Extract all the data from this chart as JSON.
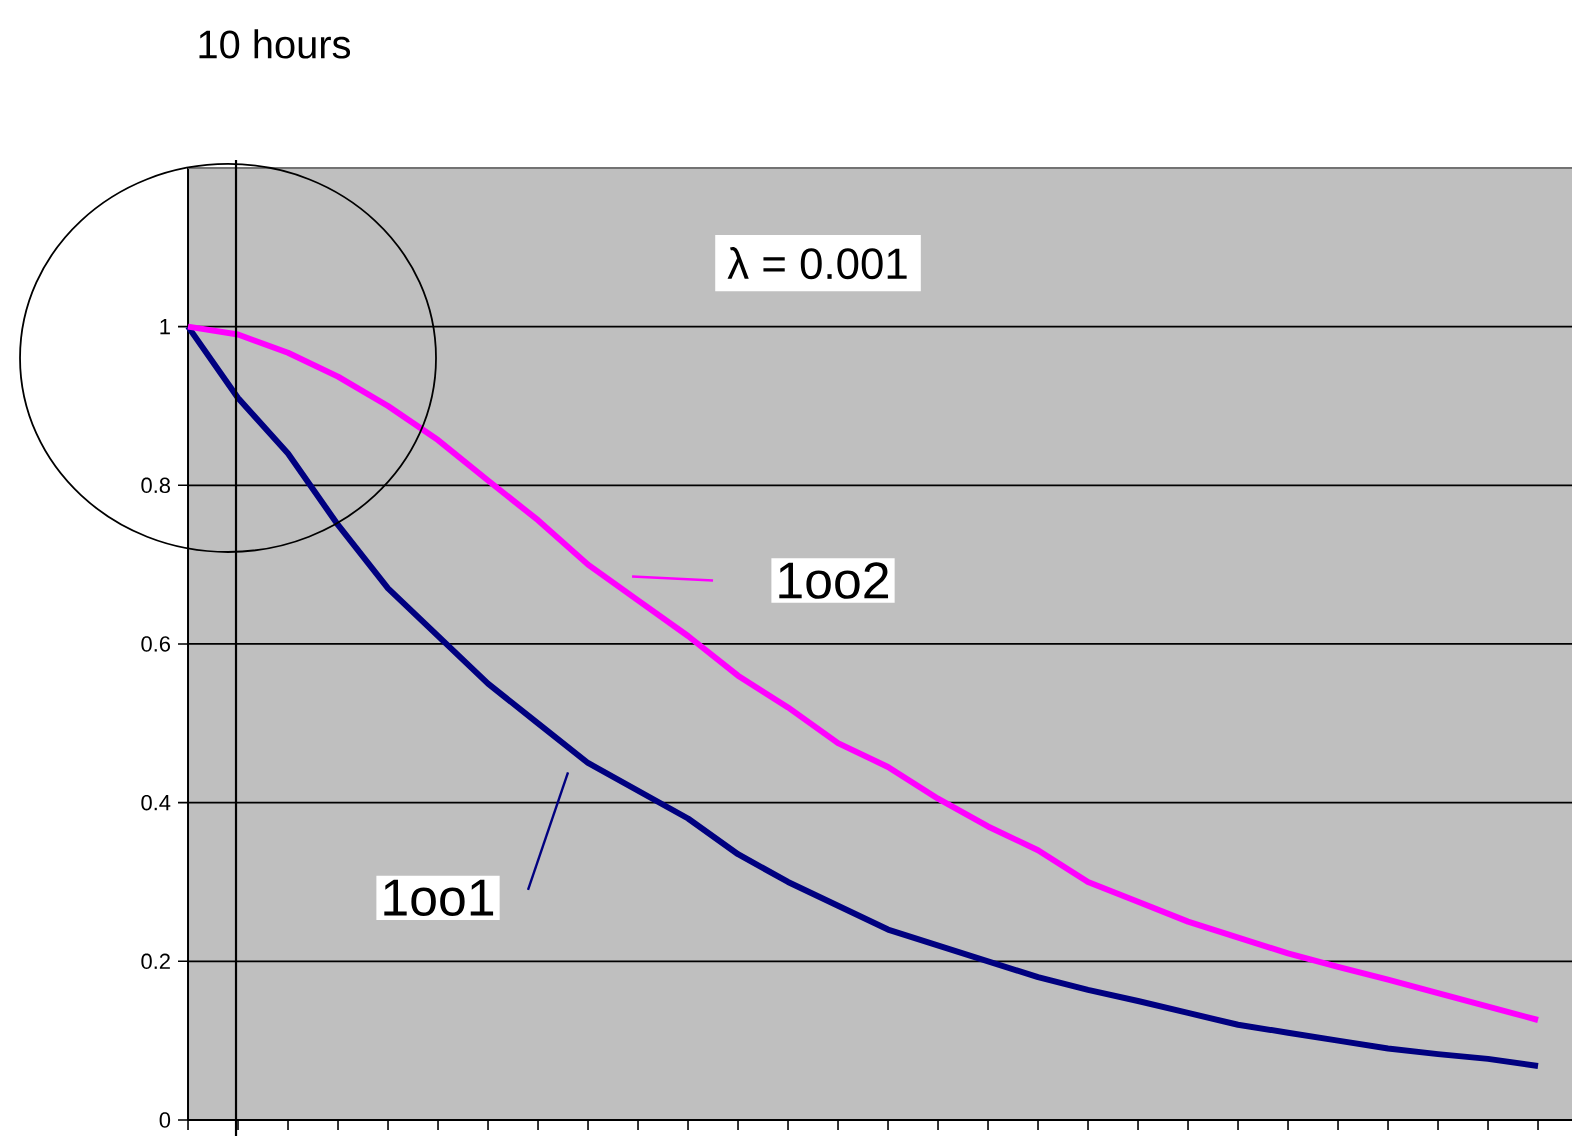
{
  "chart_data": {
    "type": "line",
    "categories": [
      null,
      null,
      null,
      null,
      null,
      null,
      null,
      null,
      null,
      null,
      null,
      null,
      null,
      null,
      null,
      null,
      null,
      null,
      null,
      null,
      null,
      null,
      null,
      null,
      null,
      null,
      null,
      null
    ],
    "series": [
      {
        "name": "1oo1",
        "color": "#000080",
        "values": [
          1.0,
          0.91,
          0.84,
          0.75,
          0.67,
          0.61,
          0.55,
          0.5,
          0.45,
          0.415,
          0.38,
          0.335,
          0.3,
          0.27,
          0.24,
          0.22,
          0.2,
          0.18,
          0.164,
          0.15,
          0.135,
          0.12,
          0.11,
          0.1,
          0.09,
          0.083,
          0.077,
          0.068
        ]
      },
      {
        "name": "1oo2",
        "color": "#ff00ff",
        "values": [
          1.0,
          0.99,
          0.967,
          0.937,
          0.9,
          0.857,
          0.806,
          0.756,
          0.7,
          0.655,
          0.61,
          0.56,
          0.52,
          0.475,
          0.445,
          0.405,
          0.37,
          0.34,
          0.3,
          0.275,
          0.25,
          0.23,
          0.21,
          0.193,
          0.177,
          0.16,
          0.143,
          0.126
        ]
      }
    ],
    "ylim": [
      0,
      1.2
    ],
    "yticks": [
      0,
      0.2,
      0.4,
      0.6,
      0.8,
      1
    ],
    "grid": "y",
    "tick_labels": "y",
    "marker": "none",
    "line_style": "solid",
    "annotations": [
      "10 hours",
      "λ = 0.001"
    ]
  }
}
